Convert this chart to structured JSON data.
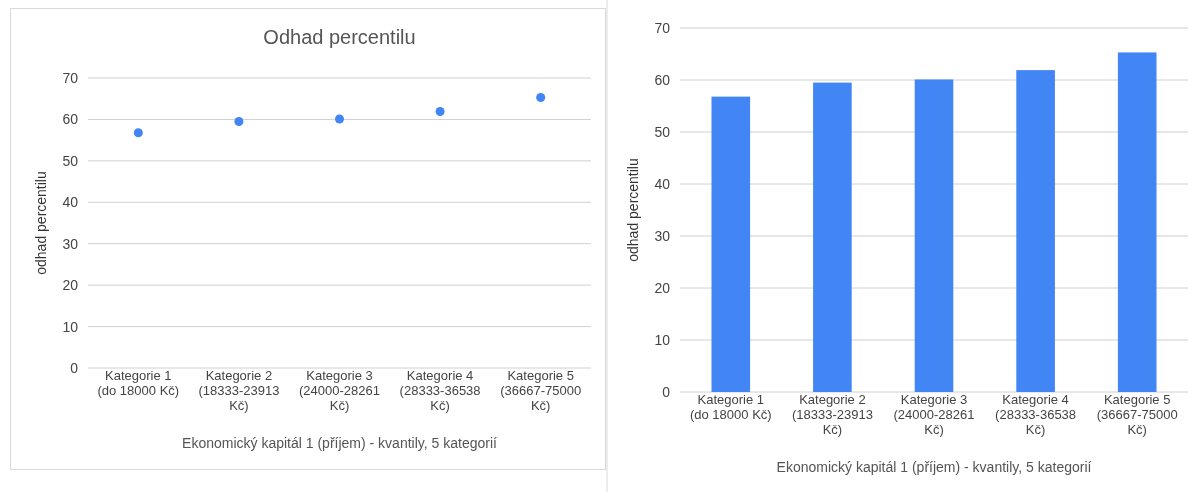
{
  "chart_data": [
    {
      "type": "scatter",
      "title": "Odhad percentilu",
      "xlabel": "Ekonomický kapitál 1 (příjem) - kvantily, 5 kategorií",
      "ylabel": "odhad percentilu",
      "categories": [
        "Kategorie 1 (do 18000 Kč)",
        "Kategorie 2 (18333-23913 Kč)",
        "Kategorie 3 (24000-28261 Kč)",
        "Kategorie 4 (28333-36538 Kč)",
        "Kategorie 5 (36667-75000 Kč)"
      ],
      "series": [
        {
          "color": "#4285f4",
          "values": [
            56.8,
            59.5,
            60.1,
            61.9,
            65.3
          ]
        }
      ],
      "ylim": [
        0,
        70
      ],
      "yticks": [
        0,
        10,
        20,
        30,
        40,
        50,
        60,
        70
      ],
      "grid": "y",
      "marker": "circle"
    },
    {
      "type": "bar",
      "xlabel": "Ekonomický kapitál 1 (příjem) - kvantily, 5 kategorií",
      "ylabel": "odhad percentilu",
      "categories": [
        "Kategorie 1 (do 18000 Kč)",
        "Kategorie 2 (18333-23913 Kč)",
        "Kategorie 3 (24000-28261 Kč)",
        "Kategorie 4 (28333-36538 Kč)",
        "Kategorie 5 (36667-75000 Kč)"
      ],
      "series": [
        {
          "color": "#4285f4",
          "values": [
            56.8,
            59.5,
            60.1,
            61.9,
            65.3
          ]
        }
      ],
      "ylim": [
        0,
        70
      ],
      "yticks": [
        0,
        10,
        20,
        30,
        40,
        50,
        60,
        70
      ],
      "grid": "y"
    }
  ]
}
